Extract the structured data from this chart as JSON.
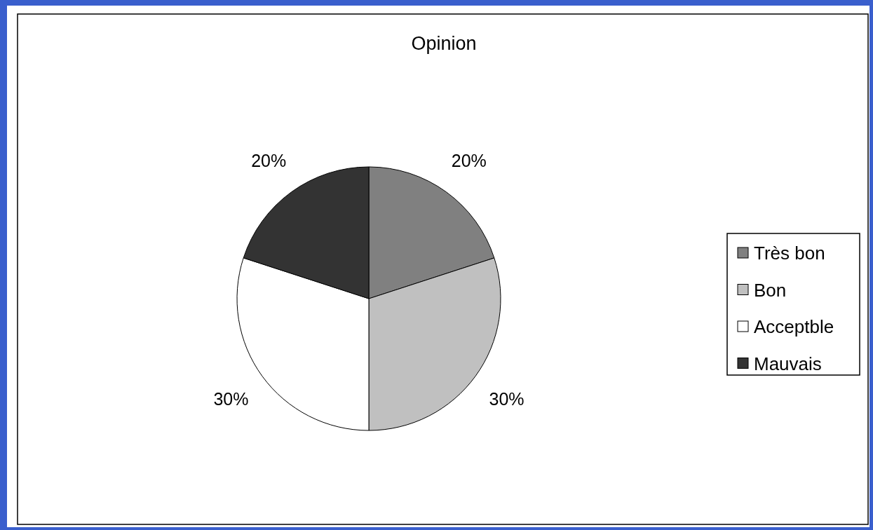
{
  "chart_data": {
    "type": "pie",
    "title": "Opinion",
    "categories": [
      "Très bon",
      "Bon",
      "Acceptble",
      "Mauvais"
    ],
    "values": [
      20,
      30,
      30,
      20
    ],
    "colors": [
      "#808080",
      "#c0c0c0",
      "#ffffff",
      "#333333"
    ],
    "value_labels": [
      "20%",
      "30%",
      "30%",
      "20%"
    ],
    "legend": "right"
  }
}
